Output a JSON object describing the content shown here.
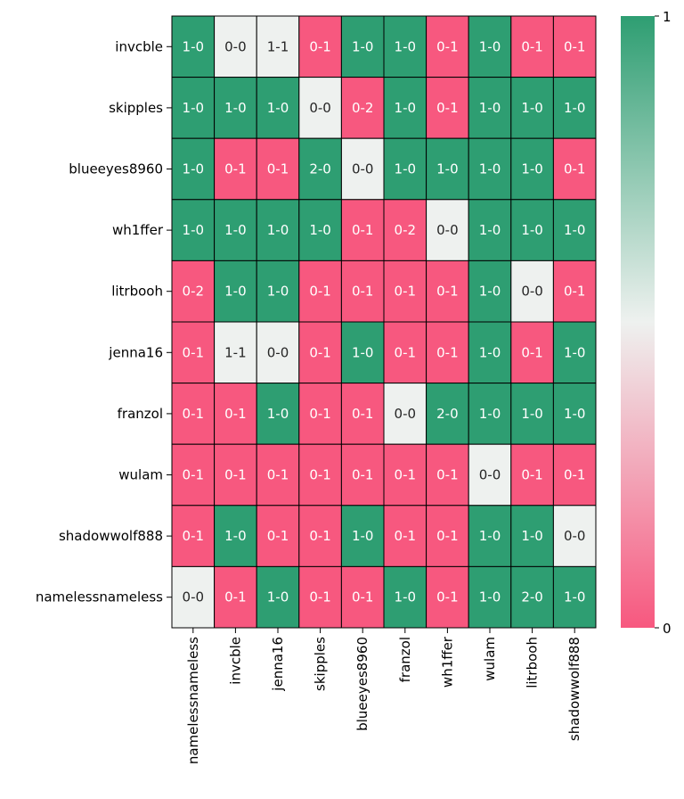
{
  "chart_data": {
    "type": "heatmap",
    "title": "",
    "xlabel": "",
    "ylabel": "",
    "rows": [
      "invcble",
      "skipples",
      "blueeyes8960",
      "wh1ffer",
      "litrbooh",
      "jenna16",
      "franzol",
      "wulam",
      "shadowwolf888",
      "namelessnameless"
    ],
    "columns": [
      "namelessnameless",
      "invcble",
      "jenna16",
      "skipples",
      "blueeyes8960",
      "franzol",
      "wh1ffer",
      "wulam",
      "litrbooh",
      "shadowwolf888"
    ],
    "cell_labels": [
      [
        "1-0",
        "0-0",
        "1-1",
        "0-1",
        "1-0",
        "1-0",
        "0-1",
        "1-0",
        "0-1",
        "0-1"
      ],
      [
        "1-0",
        "1-0",
        "1-0",
        "0-0",
        "0-2",
        "1-0",
        "0-1",
        "1-0",
        "1-0",
        "1-0"
      ],
      [
        "1-0",
        "0-1",
        "0-1",
        "2-0",
        "0-0",
        "1-0",
        "1-0",
        "1-0",
        "1-0",
        "0-1"
      ],
      [
        "1-0",
        "1-0",
        "1-0",
        "1-0",
        "0-1",
        "0-2",
        "0-0",
        "1-0",
        "1-0",
        "1-0"
      ],
      [
        "0-2",
        "1-0",
        "1-0",
        "0-1",
        "0-1",
        "0-1",
        "0-1",
        "1-0",
        "0-0",
        "0-1"
      ],
      [
        "0-1",
        "1-1",
        "0-0",
        "0-1",
        "1-0",
        "0-1",
        "0-1",
        "1-0",
        "0-1",
        "1-0"
      ],
      [
        "0-1",
        "0-1",
        "1-0",
        "0-1",
        "0-1",
        "0-0",
        "2-0",
        "1-0",
        "1-0",
        "1-0"
      ],
      [
        "0-1",
        "0-1",
        "0-1",
        "0-1",
        "0-1",
        "0-1",
        "0-1",
        "0-0",
        "0-1",
        "0-1"
      ],
      [
        "0-1",
        "1-0",
        "0-1",
        "0-1",
        "1-0",
        "0-1",
        "0-1",
        "1-0",
        "1-0",
        "0-0"
      ],
      [
        "0-0",
        "0-1",
        "1-0",
        "0-1",
        "0-1",
        "1-0",
        "0-1",
        "1-0",
        "2-0",
        "1-0"
      ]
    ],
    "values": [
      [
        1,
        0.5,
        0.5,
        0,
        1,
        1,
        0,
        1,
        0,
        0
      ],
      [
        1,
        1,
        1,
        0.5,
        0,
        1,
        0,
        1,
        1,
        1
      ],
      [
        1,
        0,
        0,
        1,
        0.5,
        1,
        1,
        1,
        1,
        0
      ],
      [
        1,
        1,
        1,
        1,
        0,
        0,
        0.5,
        1,
        1,
        1
      ],
      [
        0,
        1,
        1,
        0,
        0,
        0,
        0,
        1,
        0.5,
        0
      ],
      [
        0,
        0.5,
        0.5,
        0,
        1,
        0,
        0,
        1,
        0,
        1
      ],
      [
        0,
        0,
        1,
        0,
        0,
        0.5,
        1,
        1,
        1,
        1
      ],
      [
        0,
        0,
        0,
        0,
        0,
        0,
        0,
        0.5,
        0,
        0
      ],
      [
        0,
        1,
        0,
        0,
        1,
        0,
        0,
        1,
        1,
        0.5
      ],
      [
        0.5,
        0,
        1,
        0,
        0,
        1,
        0,
        1,
        1,
        1
      ]
    ],
    "colorbar": {
      "min": 0,
      "max": 1,
      "ticks": [
        "0",
        "1"
      ],
      "low_color": "#f7587f",
      "mid_color": "#eef1ef",
      "high_color": "#2e9e72"
    },
    "dark_text_color": "#262626",
    "light_text_color": "#ffffff",
    "grid_line_color": "#000000"
  }
}
